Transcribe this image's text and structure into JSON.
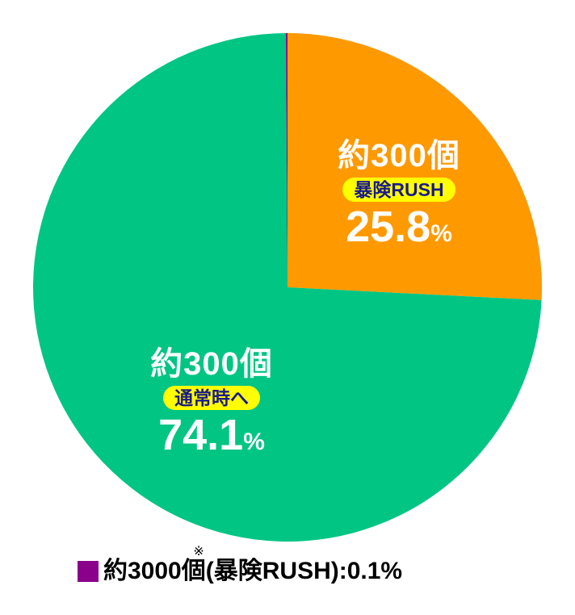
{
  "chart_data": {
    "type": "pie",
    "slices": [
      {
        "label": "暴険RUSH",
        "amount": "約300個",
        "value": 25.8,
        "value_text": "25.8",
        "unit": "%",
        "color": "#ff9900"
      },
      {
        "label": "通常時へ",
        "amount": "約300個",
        "value": 74.1,
        "value_text": "74.1",
        "unit": "%",
        "color": "#00c583"
      },
      {
        "label": "暴険RUSH",
        "amount": "約3000個",
        "value": 0.1,
        "value_text": "0.1",
        "unit": "%",
        "color": "#8b008b"
      }
    ],
    "footnote": {
      "amount": "約3000個",
      "asterisk": "※",
      "text": "(暴険RUSH):0.1%"
    }
  }
}
